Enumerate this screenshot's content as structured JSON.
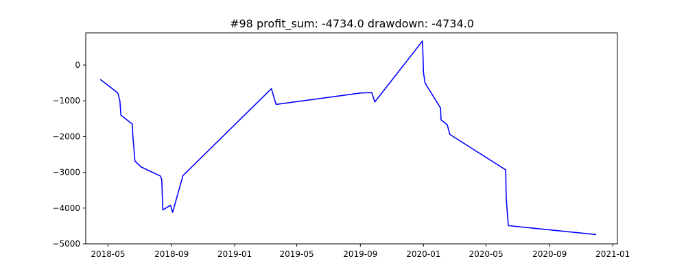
{
  "chart_data": {
    "type": "line",
    "title": "#98   profit_sum: -4734.0 drawdown: -4734.0",
    "xlabel": "",
    "ylabel": "",
    "xlim": [
      "2018-03-19",
      "2021-01-10"
    ],
    "ylim": [
      -5000,
      900
    ],
    "grid": false,
    "x_ticks": [
      "2018-05",
      "2018-09",
      "2019-01",
      "2019-05",
      "2019-09",
      "2020-01",
      "2020-05",
      "2020-09",
      "2021-01"
    ],
    "y_ticks": [
      0,
      -1000,
      -2000,
      -3000,
      -4000,
      -5000
    ],
    "y_tick_labels": [
      "0",
      "−1000",
      "−2000",
      "−3000",
      "−4000",
      "−5000"
    ],
    "series": [
      {
        "color": "#0000ff",
        "x": [
          "2018-04-16",
          "2018-05-20",
          "2018-05-24",
          "2018-05-26",
          "2018-06-17",
          "2018-06-18",
          "2018-06-20",
          "2018-06-22",
          "2018-07-04",
          "2018-08-10",
          "2018-08-13",
          "2018-08-15",
          "2018-08-30",
          "2018-09-03",
          "2018-09-23",
          "2019-03-13",
          "2019-03-22",
          "2019-09-02",
          "2019-09-23",
          "2019-09-29",
          "2019-12-30",
          "2019-12-31",
          "2020-01-01",
          "2020-01-04",
          "2020-02-03",
          "2020-02-04",
          "2020-02-16",
          "2020-02-21",
          "2020-06-08",
          "2020-06-09",
          "2020-06-13",
          "2020-11-30"
        ],
        "y": [
          -400,
          -780,
          -1000,
          -1400,
          -1650,
          -1980,
          -2300,
          -2680,
          -2850,
          -3100,
          -3200,
          -4050,
          -3920,
          -4120,
          -3090,
          -660,
          -1100,
          -780,
          -770,
          -1030,
          670,
          300,
          -200,
          -500,
          -1200,
          -1530,
          -1670,
          -1940,
          -2930,
          -3700,
          -4490,
          -4740
        ]
      }
    ]
  }
}
